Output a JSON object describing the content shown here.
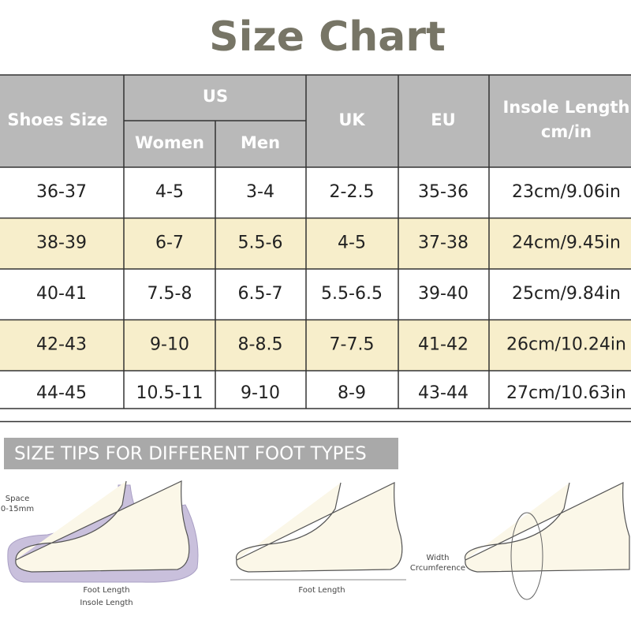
{
  "title": "Size Chart",
  "table": {
    "header": {
      "shoes_size": "Shoes Size",
      "us": "US",
      "women": "Women",
      "men": "Men",
      "uk": "UK",
      "eu": "EU",
      "insole": [
        "Insole Length",
        "cm/in"
      ]
    },
    "rows": [
      [
        "36-37",
        "4-5",
        "3-4",
        "2-2.5",
        "35-36",
        "23cm/9.06in"
      ],
      [
        "38-39",
        "6-7",
        "5.5-6",
        "4-5",
        "37-38",
        "24cm/9.45in"
      ],
      [
        "40-41",
        "7.5-8",
        "6.5-7",
        "5.5-6.5",
        "39-40",
        "25cm/9.84in"
      ],
      [
        "42-43",
        "9-10",
        "8-8.5",
        "7-7.5",
        "41-42",
        "26cm/10.24in"
      ],
      [
        "44-45",
        "10.5-11",
        "9-10",
        "8-9",
        "43-44",
        "27cm/10.63in"
      ]
    ]
  },
  "tips": {
    "title": "SIZE TIPS FOR DIFFERENT FOOT TYPES",
    "figures": [
      {
        "labels": [
          "Space",
          "0-15mm",
          "Foot Length",
          "Insole Length"
        ]
      },
      {
        "labels": [
          "Foot Length"
        ]
      },
      {
        "labels": [
          "Width",
          "Crcumference"
        ]
      }
    ]
  }
}
